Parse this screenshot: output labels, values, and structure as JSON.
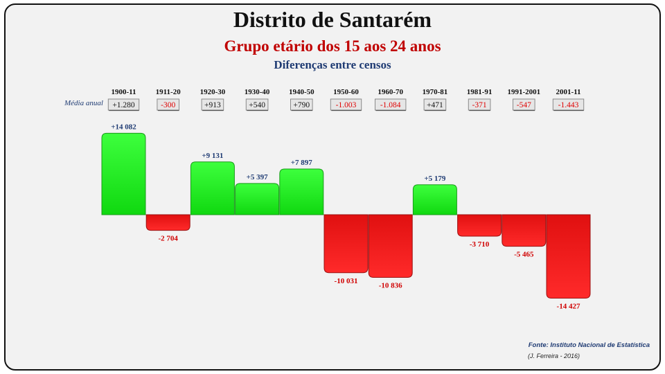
{
  "header": {
    "title": "Distrito de Santarém",
    "subtitle": "Grupo etário dos 15 aos 24 anos",
    "subsubtitle": "Diferenças entre censos"
  },
  "media_label": "Média anual",
  "footer": {
    "source": "Fonte: Instituto Nacional de Estatística",
    "credit": "(J. Ferreira - 2016)"
  },
  "colors": {
    "positive": "#1cf21c",
    "negative": "#f21c1c",
    "pos_label": "#1f3b73",
    "neg_label": "#d00000"
  },
  "chart_data": {
    "type": "bar",
    "title": "Distrito de Santarém",
    "categories": [
      "1900-11",
      "1911-20",
      "1920-30",
      "1930-40",
      "1940-50",
      "1950-60",
      "1960-70",
      "1970-81",
      "1981-91",
      "1991-2001",
      "2001-11"
    ],
    "values": [
      14082,
      -2704,
      9131,
      5397,
      7897,
      -10031,
      -10836,
      5179,
      -3710,
      -5465,
      -14427
    ],
    "value_labels": [
      "+14 082",
      "-2 704",
      "+9 131",
      "+5 397",
      "+7 897",
      "-10 031",
      "-10 836",
      "+5 179",
      "-3 710",
      "-5 465",
      "-14 427"
    ],
    "annual_average": [
      "+1.280",
      "-300",
      "+913",
      "+540",
      "+790",
      "-1.003",
      "-1.084",
      "+471",
      "-371",
      "-547",
      "-1.443"
    ],
    "grid": false,
    "legend": "none"
  }
}
